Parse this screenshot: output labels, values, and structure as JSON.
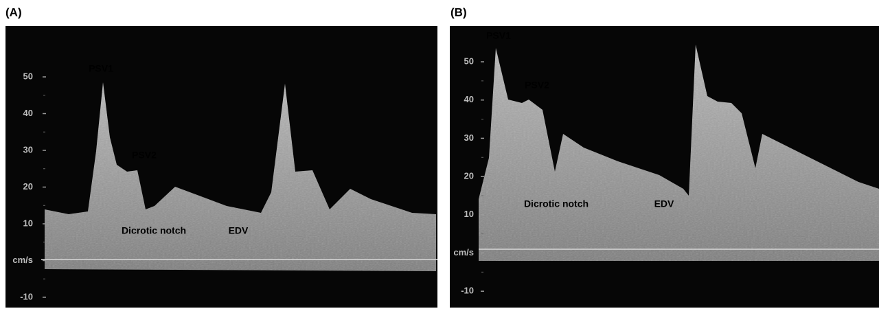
{
  "panels": [
    {
      "label": "(A)",
      "ticks": [
        "50",
        "40",
        "30",
        "20",
        "10",
        "cm/s",
        "-10"
      ],
      "annotations": [
        "PSV1",
        "PSV2",
        "Dicrotic notch",
        "EDV"
      ]
    },
    {
      "label": "(B)",
      "ticks": [
        "50",
        "40",
        "30",
        "20",
        "10",
        "cm/s",
        "-10"
      ],
      "annotations": [
        "PSV1",
        "PSV2",
        "Dicrotic notch",
        "EDV"
      ]
    }
  ]
}
